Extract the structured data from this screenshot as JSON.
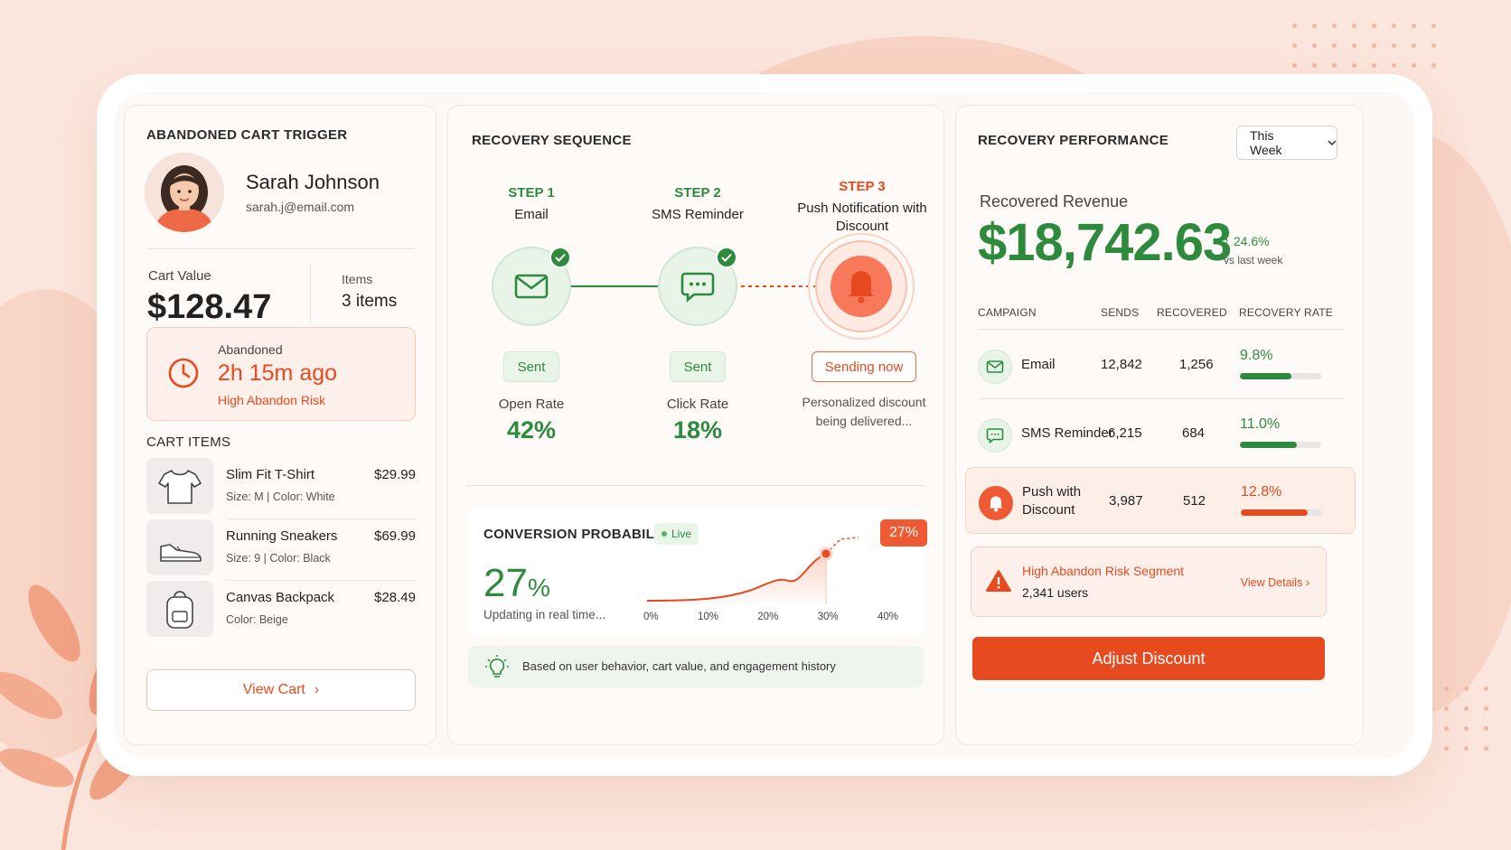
{
  "colors": {
    "accent": "#e84a1f",
    "success": "#2e8b3d",
    "background": "#fbe6dd"
  },
  "trigger": {
    "title": "ABANDONED CART TRIGGER",
    "customer": {
      "name": "Sarah Johnson",
      "email": "sarah.j@email.com"
    },
    "cart_value_label": "Cart Value",
    "cart_value": "$128.47",
    "items_label": "Items",
    "items_value": "3 items",
    "abandoned_label": "Abandoned",
    "abandoned_time": "2h 15m ago",
    "risk": "High Abandon Risk",
    "cart_items_title": "CART ITEMS",
    "items": [
      {
        "name": "Slim Fit T-Shirt",
        "meta": "Size: M  |  Color: White",
        "price": "$29.99",
        "icon": "tshirt-icon"
      },
      {
        "name": "Running Sneakers",
        "meta": "Size: 9  |  Color: Black",
        "price": "$69.99",
        "icon": "sneaker-icon"
      },
      {
        "name": "Canvas Backpack",
        "meta": "Color: Beige",
        "price": "$28.49",
        "icon": "backpack-icon"
      }
    ],
    "view_cart": "View Cart"
  },
  "sequence": {
    "title": "RECOVERY SEQUENCE",
    "steps": [
      {
        "num": "STEP 1",
        "name": "Email",
        "status": "Sent",
        "metric_label": "Open Rate",
        "metric_value": "42%",
        "icon": "mail-icon"
      },
      {
        "num": "STEP 2",
        "name": "SMS Reminder",
        "status": "Sent",
        "metric_label": "Click Rate",
        "metric_value": "18%",
        "icon": "chat-icon"
      },
      {
        "num": "STEP 3",
        "name": "Push Notification with Discount",
        "status": "Sending now",
        "note": "Personalized discount being delivered...",
        "icon": "bell-icon"
      }
    ],
    "conversion": {
      "title": "CONVERSION PROBABILITY",
      "live": "Live",
      "value": "27",
      "unit": "%",
      "note": "Updating in real time...",
      "badge": "27%",
      "x_ticks": [
        "0%",
        "10%",
        "20%",
        "30%",
        "40%"
      ]
    },
    "basis": "Based on user behavior, cart value, and engagement history"
  },
  "performance": {
    "title": "RECOVERY PERFORMANCE",
    "period": "This Week",
    "revenue_label": "Recovered Revenue",
    "revenue": "$18,742.63",
    "delta": "24.6%",
    "delta_note": "vs last week",
    "headers": {
      "campaign": "CAMPAIGN",
      "sends": "SENDS",
      "recovered": "RECOVERED",
      "rate": "RECOVERY RATE"
    },
    "rows": [
      {
        "name": "Email",
        "sends": "12,842",
        "recovered": "1,256",
        "rate": "9.8%",
        "fill": 0.63,
        "icon": "mail-icon"
      },
      {
        "name": "SMS Reminder",
        "sends": "6,215",
        "recovered": "684",
        "rate": "11.0%",
        "fill": 0.7,
        "icon": "chat-icon"
      },
      {
        "name": "Push with Discount",
        "sends": "3,987",
        "recovered": "512",
        "rate": "12.8%",
        "fill": 0.82,
        "icon": "bell-icon"
      }
    ],
    "alert": {
      "title": "High Abandon Risk Segment",
      "users": "2,341 users",
      "link": "View Details"
    },
    "cta": "Adjust Discount"
  }
}
